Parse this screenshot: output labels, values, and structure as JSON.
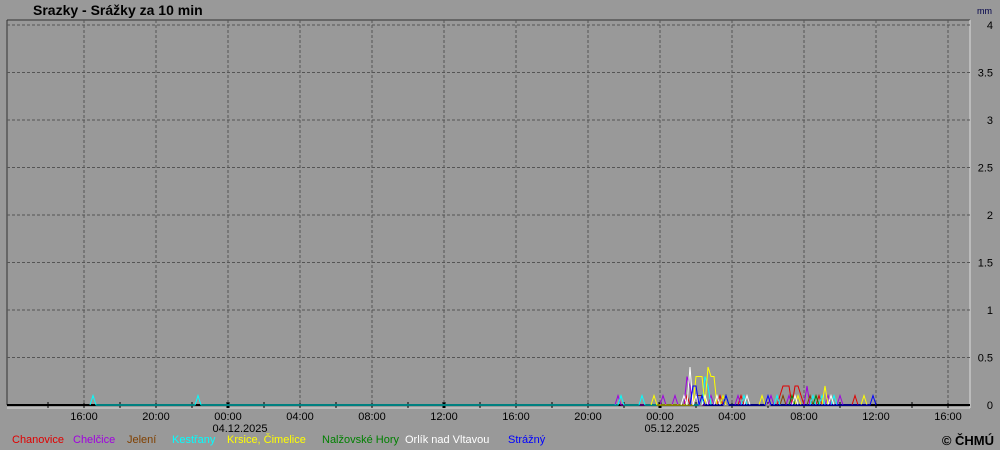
{
  "title": "Srazky - Srážky za 10 min",
  "copyright": "© ČHMÚ",
  "chart_data": {
    "type": "line",
    "title": "Srazky - Srážky za 10 min",
    "ylabel": "mm",
    "ylim": [
      0,
      4
    ],
    "yticks": [
      "0",
      "0.5",
      "1",
      "1.5",
      "2",
      "2.5",
      "3",
      "3.5",
      "4"
    ],
    "xlim": [
      "2025-12-03 11:45",
      "2025-12-05 17:15"
    ],
    "xticks": [
      {
        "t": "2025-12-03 16:00",
        "label": "16:00"
      },
      {
        "t": "2025-12-03 20:00",
        "label": "20:00"
      },
      {
        "t": "2025-12-04 00:00",
        "label": "00:00",
        "date": "04.12.2025"
      },
      {
        "t": "2025-12-04 04:00",
        "label": "04:00"
      },
      {
        "t": "2025-12-04 08:00",
        "label": "08:00"
      },
      {
        "t": "2025-12-04 12:00",
        "label": "12:00"
      },
      {
        "t": "2025-12-04 16:00",
        "label": "16:00"
      },
      {
        "t": "2025-12-04 20:00",
        "label": "20:00"
      },
      {
        "t": "2025-12-05 00:00",
        "label": "00:00",
        "date": "05.12.2025"
      },
      {
        "t": "2025-12-05 04:00",
        "label": "04:00"
      },
      {
        "t": "2025-12-05 08:00",
        "label": "08:00"
      },
      {
        "t": "2025-12-05 12:00",
        "label": "12:00"
      },
      {
        "t": "2025-12-05 16:00",
        "label": "16:00"
      }
    ],
    "grid": true,
    "legend_placement": "bottom",
    "series": [
      {
        "name": "Chanovice",
        "color": "#e00000",
        "points": [
          [
            "2025-12-05 01:30",
            0.1
          ],
          [
            "2025-12-05 03:20",
            0.1
          ],
          [
            "2025-12-05 04:30",
            0.1
          ],
          [
            "2025-12-05 06:40",
            0.1
          ],
          [
            "2025-12-05 06:50",
            0.2
          ],
          [
            "2025-12-05 07:00",
            0.2
          ],
          [
            "2025-12-05 07:10",
            0.2
          ],
          [
            "2025-12-05 07:30",
            0.2
          ],
          [
            "2025-12-05 07:40",
            0.2
          ],
          [
            "2025-12-05 07:50",
            0.1
          ],
          [
            "2025-12-05 08:50",
            0.1
          ],
          [
            "2025-12-05 10:50",
            0.1
          ]
        ]
      },
      {
        "name": "Chelčice",
        "color": "#a000e0",
        "points": [
          [
            "2025-12-04 21:40",
            0.1
          ],
          [
            "2025-12-05 00:10",
            0.1
          ],
          [
            "2025-12-05 00:50",
            0.1
          ],
          [
            "2025-12-05 01:30",
            0.3
          ],
          [
            "2025-12-05 01:40",
            0.2
          ],
          [
            "2025-12-05 02:50",
            0.1
          ],
          [
            "2025-12-05 04:20",
            0.1
          ],
          [
            "2025-12-05 06:10",
            0.1
          ],
          [
            "2025-12-05 07:10",
            0.1
          ],
          [
            "2025-12-05 08:10",
            0.2
          ],
          [
            "2025-12-05 09:20",
            0.1
          ],
          [
            "2025-12-05 10:00",
            0.1
          ]
        ]
      },
      {
        "name": "Jelení",
        "color": "#804000",
        "points": [
          [
            "2025-12-05 02:00",
            0.1
          ],
          [
            "2025-12-05 02:10",
            0.1
          ],
          [
            "2025-12-05 02:20",
            0.1
          ],
          [
            "2025-12-05 03:30",
            0.1
          ],
          [
            "2025-12-05 06:50",
            0.1
          ],
          [
            "2025-12-05 08:20",
            0.1
          ]
        ]
      },
      {
        "name": "Kestřany",
        "color": "#00ffff",
        "points": [
          [
            "2025-12-03 16:30",
            0.1
          ],
          [
            "2025-12-03 22:20",
            0.1
          ],
          [
            "2025-12-04 21:50",
            0.1
          ],
          [
            "2025-12-04 23:00",
            0.1
          ],
          [
            "2025-12-05 02:30",
            0.3
          ],
          [
            "2025-12-05 02:40",
            0.2
          ],
          [
            "2025-12-05 04:40",
            0.1
          ],
          [
            "2025-12-05 06:30",
            0.1
          ],
          [
            "2025-12-05 08:30",
            0.1
          ],
          [
            "2025-12-05 09:00",
            0.1
          ],
          [
            "2025-12-05 09:40",
            0.1
          ]
        ]
      },
      {
        "name": "Krsice, Čimelice",
        "color": "#ffff00",
        "points": [
          [
            "2025-12-04 23:40",
            0.1
          ],
          [
            "2025-12-05 02:00",
            0.3
          ],
          [
            "2025-12-05 02:10",
            0.3
          ],
          [
            "2025-12-05 02:20",
            0.3
          ],
          [
            "2025-12-05 02:40",
            0.4
          ],
          [
            "2025-12-05 02:50",
            0.3
          ],
          [
            "2025-12-05 03:00",
            0.3
          ],
          [
            "2025-12-05 03:30",
            0.1
          ],
          [
            "2025-12-05 05:40",
            0.1
          ],
          [
            "2025-12-05 07:40",
            0.1
          ],
          [
            "2025-12-05 09:10",
            0.2
          ],
          [
            "2025-12-05 11:20",
            0.1
          ]
        ]
      },
      {
        "name": "Nalžovské Hory",
        "color": "#008000",
        "points": [
          [
            "2025-12-05 03:40",
            0.1
          ],
          [
            "2025-12-05 07:20",
            0.1
          ],
          [
            "2025-12-05 08:40",
            0.1
          ]
        ]
      },
      {
        "name": "Orlík nad Vltavou",
        "color": "#ffffff",
        "points": [
          [
            "2025-12-05 01:20",
            0.1
          ],
          [
            "2025-12-05 01:40",
            0.4
          ],
          [
            "2025-12-05 02:00",
            0.1
          ],
          [
            "2025-12-05 02:30",
            0.1
          ],
          [
            "2025-12-05 03:10",
            0.1
          ],
          [
            "2025-12-05 04:50",
            0.1
          ],
          [
            "2025-12-05 07:30",
            0.1
          ],
          [
            "2025-12-05 09:30",
            0.1
          ]
        ]
      },
      {
        "name": "Strážný",
        "color": "#0000ff",
        "points": [
          [
            "2025-12-05 01:50",
            0.2
          ],
          [
            "2025-12-05 02:00",
            0.2
          ],
          [
            "2025-12-05 02:20",
            0.1
          ],
          [
            "2025-12-05 03:40",
            0.1
          ],
          [
            "2025-12-05 06:00",
            0.1
          ],
          [
            "2025-12-05 11:50",
            0.1
          ]
        ]
      }
    ]
  }
}
